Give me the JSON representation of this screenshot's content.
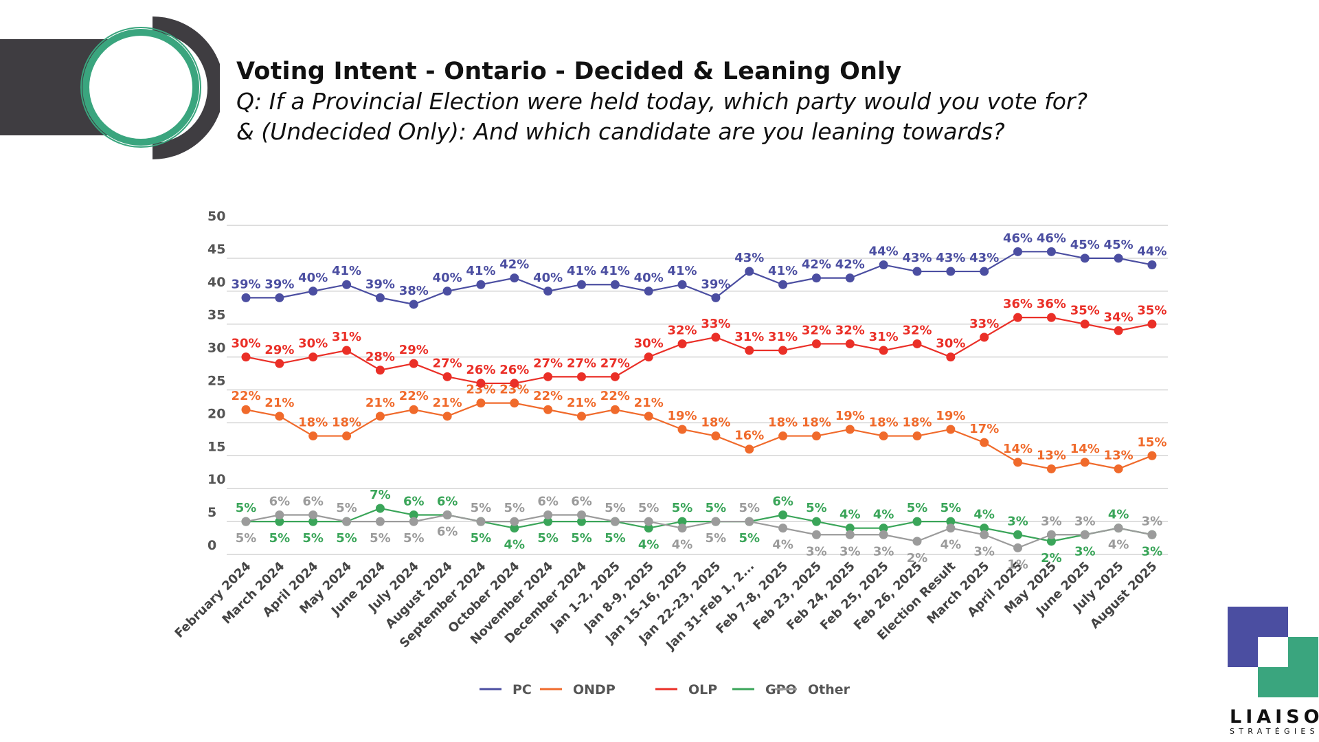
{
  "header": {
    "title": "Voting Intent - Ontario - Decided & Leaning Only",
    "subtitle_line1": "Q: If a Provincial Election were held today, which party would you vote for?",
    "subtitle_line2": "& (Undecided Only): And which candidate are you leaning towards?"
  },
  "brand": {
    "name": "LIAISON",
    "sub": "STRATÉGIES"
  },
  "chart_data": {
    "type": "line",
    "title": "Voting Intent - Ontario - Decided & Leaning Only",
    "xlabel": "",
    "ylabel": "",
    "ylim": [
      0,
      50
    ],
    "yticks": [
      "0",
      "5",
      "10",
      "15",
      "20",
      "25",
      "30",
      "35",
      "40",
      "45",
      "50"
    ],
    "grid": true,
    "legend_position": "bottom",
    "categories": [
      "February 2024",
      "March 2024",
      "April 2024",
      "May 2024",
      "June 2024",
      "July 2024",
      "August 2024",
      "September 2024",
      "October 2024",
      "November 2024",
      "December 2024",
      "Jan 1-2, 2025",
      "Jan 8-9, 2025",
      "Jan 15-16, 2025",
      "Jan 22-23, 2025",
      "Jan 31-Feb 1, 2...",
      "Feb 7-8, 2025",
      "Feb 23, 2025",
      "Feb 24, 2025",
      "Feb 25, 2025",
      "Feb 26, 2025",
      "Election Result",
      "March 2025",
      "April 2025",
      "May 2025",
      "June 2025",
      "July 2025",
      "August 2025"
    ],
    "series": [
      {
        "name": "PC",
        "color": "#4b4ea1",
        "label_pos": "above",
        "values": [
          39,
          39,
          40,
          41,
          39,
          38,
          40,
          41,
          42,
          40,
          41,
          41,
          40,
          41,
          39,
          43,
          41,
          42,
          42,
          44,
          43,
          43,
          43,
          46,
          46,
          45,
          45,
          44
        ]
      },
      {
        "name": "ONDP",
        "color": "#f06a2b",
        "label_pos": "above",
        "values": [
          22,
          21,
          18,
          18,
          21,
          22,
          21,
          23,
          23,
          22,
          21,
          22,
          21,
          19,
          18,
          16,
          18,
          18,
          19,
          18,
          18,
          19,
          17,
          14,
          13,
          14,
          13,
          15
        ]
      },
      {
        "name": "OLP",
        "color": "#ea2f27",
        "label_pos": "above",
        "values": [
          30,
          29,
          30,
          31,
          28,
          29,
          27,
          26,
          26,
          27,
          27,
          27,
          30,
          32,
          33,
          31,
          31,
          32,
          32,
          31,
          32,
          30,
          33,
          36,
          36,
          35,
          34,
          35
        ]
      },
      {
        "name": "GPO",
        "color": "#3aa559",
        "label_pos": "auto",
        "values": [
          5,
          5,
          5,
          5,
          7,
          6,
          6,
          5,
          4,
          5,
          5,
          5,
          4,
          5,
          5,
          5,
          6,
          5,
          4,
          4,
          5,
          5,
          4,
          3,
          2,
          3,
          4,
          3
        ]
      },
      {
        "name": "Other",
        "color": "#9b9b9b",
        "label_pos": "auto",
        "values": [
          5,
          6,
          6,
          5,
          5,
          5,
          6,
          5,
          5,
          6,
          6,
          5,
          5,
          4,
          5,
          5,
          4,
          3,
          3,
          3,
          2,
          4,
          3,
          1,
          3,
          3,
          4,
          3
        ]
      }
    ]
  }
}
